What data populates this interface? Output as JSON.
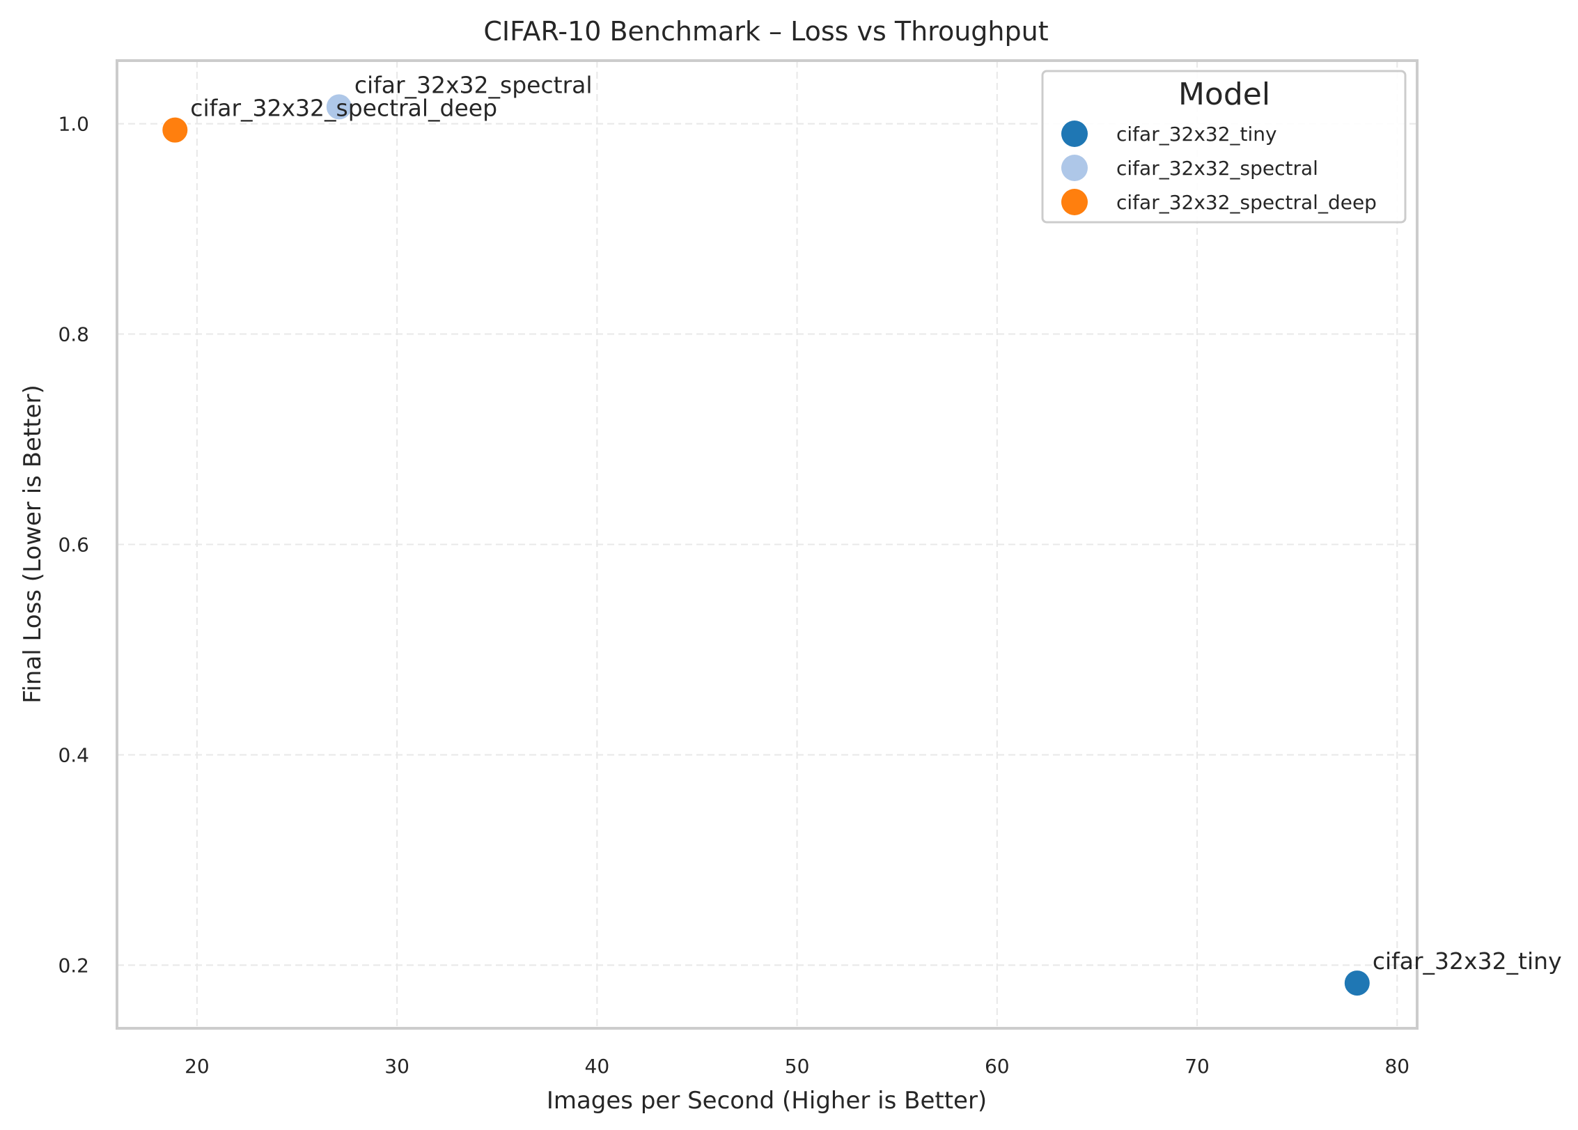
{
  "chart_data": {
    "type": "scatter",
    "title": "CIFAR-10 Benchmark – Loss vs Throughput",
    "xlabel": "Images per Second (Higher is Better)",
    "ylabel": "Final Loss (Lower is Better)",
    "xlim": [
      16,
      81
    ],
    "ylim": [
      0.14,
      1.06
    ],
    "xticks": [
      20,
      30,
      40,
      50,
      60,
      70,
      80
    ],
    "yticks": [
      0.2,
      0.4,
      0.6,
      0.8,
      1.0
    ],
    "xtick_labels": [
      "20",
      "30",
      "40",
      "50",
      "60",
      "70",
      "80"
    ],
    "ytick_labels": [
      "0.2",
      "0.4",
      "0.6",
      "0.8",
      "1.0"
    ],
    "grid": true,
    "legend": {
      "title": "Model",
      "placement": "top-right"
    },
    "series": [
      {
        "name": "cifar_32x32_tiny",
        "color": "#1f77b4",
        "x": 78.0,
        "y": 0.183,
        "annotation": "cifar_32x32_tiny"
      },
      {
        "name": "cifar_32x32_spectral",
        "color": "#aec7e8",
        "x": 27.1,
        "y": 1.016,
        "annotation": "cifar_32x32_spectral"
      },
      {
        "name": "cifar_32x32_spectral_deep",
        "color": "#ff7f0e",
        "x": 18.9,
        "y": 0.994,
        "annotation": "cifar_32x32_spectral_deep"
      }
    ]
  }
}
